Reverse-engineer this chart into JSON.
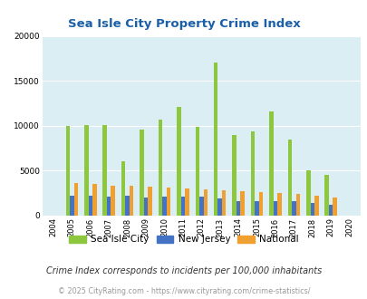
{
  "title": "Sea Isle City Property Crime Index",
  "years": [
    2004,
    2005,
    2006,
    2007,
    2008,
    2009,
    2010,
    2011,
    2012,
    2013,
    2014,
    2015,
    2016,
    2017,
    2018,
    2019,
    2020
  ],
  "sea_isle_city": [
    0,
    10000,
    10100,
    10100,
    6000,
    9600,
    10700,
    12100,
    9900,
    17000,
    8900,
    9400,
    11600,
    8400,
    5000,
    4500,
    0
  ],
  "new_jersey": [
    0,
    2200,
    2200,
    2100,
    2200,
    2000,
    2050,
    2100,
    2050,
    1900,
    1600,
    1600,
    1550,
    1550,
    1400,
    1200,
    0
  ],
  "national": [
    0,
    3550,
    3450,
    3250,
    3250,
    3150,
    3050,
    2950,
    2850,
    2800,
    2650,
    2550,
    2450,
    2350,
    2200,
    2000,
    0
  ],
  "sea_isle_color": "#8dc63f",
  "nj_color": "#4472c4",
  "national_color": "#f0a030",
  "bg_color": "#daeef3",
  "ylim": [
    0,
    20000
  ],
  "yticks": [
    0,
    5000,
    10000,
    15000,
    20000
  ],
  "footnote1": "Crime Index corresponds to incidents per 100,000 inhabitants",
  "footnote2": "© 2025 CityRating.com - https://www.cityrating.com/crime-statistics/",
  "bar_width": 0.22
}
